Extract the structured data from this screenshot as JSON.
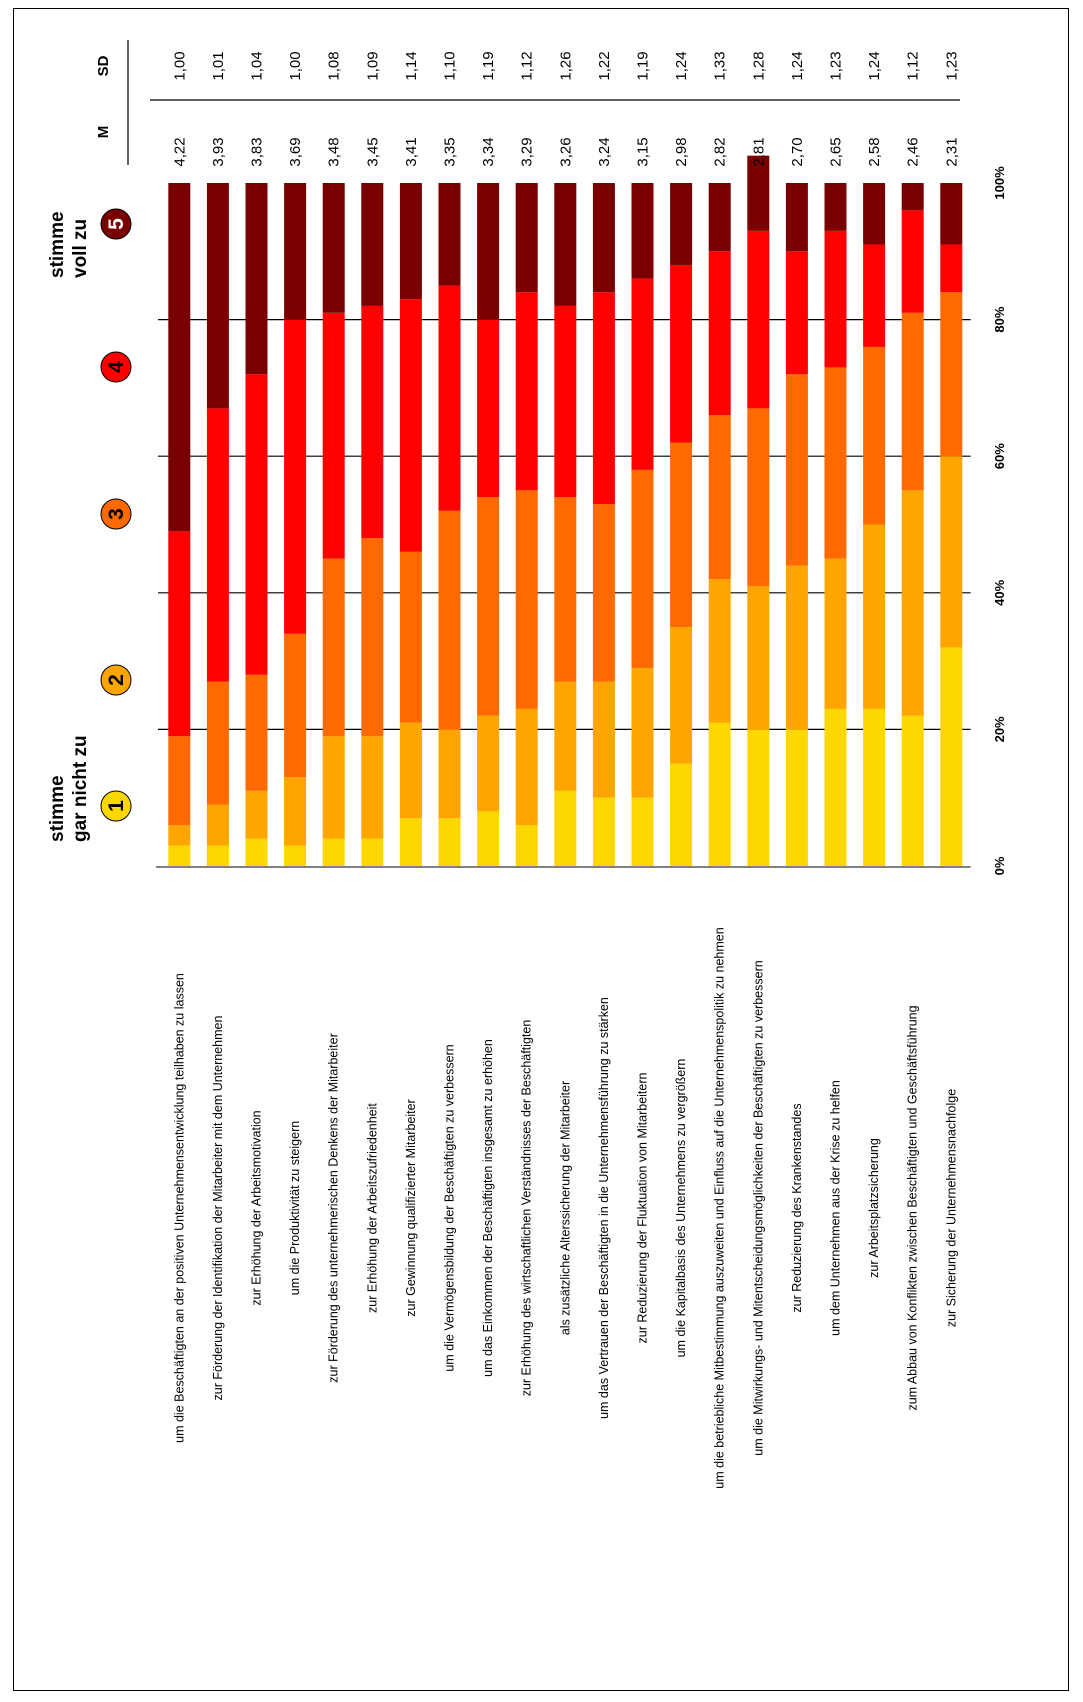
{
  "chart_data": {
    "type": "bar",
    "orientation": "horizontal-stacked-100",
    "categories": [
      "um die Beschäftigten an der positiven Unternehmensentwicklung teilhaben zu lassen",
      "zur Förderung der Identifikation der Mitarbeiter mit dem Unternehmen",
      "zur Erhöhung der Arbeitsmotivation",
      "um die Produktivität zu steigern",
      "zur Förderung des unternehmerischen Denkens der Mitarbeiter",
      "zur Erhöhung der Arbeitszufriedenheit",
      "zur Gewinnung qualifizierter Mitarbeiter",
      "um die Vermögensbildung der Beschäftigten zu verbessern",
      "um das Einkommen der Beschäftigten insgesamt zu erhöhen",
      "zur Erhöhung des wirtschaftlichen Verständnisses der Beschäftigten",
      "als zusätzliche Alterssicherung der Mitarbeiter",
      "um das Vertrauen der Beschäftigten in die Unternehmensführung zu stärken",
      "zur Reduzierung der Fluktuation von Mitarbeitern",
      "um die Kapitalbasis des Unternehmens zu vergrößern",
      "um die betriebliche Mitbestimmung auszuweiten und Einfluss auf die Unternehmenspolitik zu nehmen",
      "um die Mitwirkungs- und Mitentscheidungsmöglichkeiten der Beschäftigten zu verbessern",
      "zur Reduzierung des Krankenstandes",
      "um dem Unternehmen aus der Krise zu helfen",
      "zur Arbeitsplatzsicherung",
      "zum Abbau von Konflikten zwischen Beschäftigten und Geschäftsführung",
      "zur Sicherung der Unternehmensnachfolge"
    ],
    "series": [
      {
        "key": "1",
        "color": "#FFD700",
        "values": [
          3,
          3,
          4,
          3,
          4,
          4,
          7,
          7,
          8,
          6,
          11,
          10,
          10,
          15,
          21,
          20,
          20,
          23,
          23,
          22,
          32
        ]
      },
      {
        "key": "2",
        "color": "#FFA500",
        "values": [
          3,
          6,
          7,
          10,
          15,
          15,
          14,
          13,
          14,
          17,
          16,
          17,
          19,
          20,
          21,
          21,
          24,
          22,
          27,
          33,
          28
        ]
      },
      {
        "key": "3",
        "color": "#FF6A00",
        "values": [
          13,
          18,
          17,
          21,
          26,
          29,
          25,
          32,
          32,
          32,
          27,
          26,
          29,
          27,
          24,
          26,
          28,
          28,
          26,
          26,
          24
        ]
      },
      {
        "key": "4",
        "color": "#FF0000",
        "values": [
          30,
          40,
          44,
          46,
          36,
          34,
          37,
          33,
          26,
          29,
          28,
          31,
          28,
          26,
          24,
          26,
          18,
          20,
          15,
          15,
          7
        ]
      },
      {
        "key": "5",
        "color": "#7A0000",
        "values": [
          51,
          33,
          28,
          20,
          19,
          18,
          17,
          15,
          20,
          16,
          18,
          16,
          14,
          12,
          10,
          11,
          10,
          7,
          9,
          4,
          9
        ]
      }
    ],
    "M": [
      "4,22",
      "3,93",
      "3,83",
      "3,69",
      "3,48",
      "3,45",
      "3,41",
      "3,35",
      "3,34",
      "3,29",
      "3,26",
      "3,24",
      "3,15",
      "2,98",
      "2,82",
      "2,81",
      "2,70",
      "2,65",
      "2,58",
      "2,46",
      "2,31"
    ],
    "SD": [
      "1,00",
      "1,01",
      "1,04",
      "1,00",
      "1,08",
      "1,09",
      "1,14",
      "1,10",
      "1,19",
      "1,12",
      "1,26",
      "1,22",
      "1,19",
      "1,24",
      "1,33",
      "1,28",
      "1,24",
      "1,23",
      "1,24",
      "1,12",
      "1,23"
    ],
    "ticks": [
      "0%",
      "20%",
      "40%",
      "60%",
      "80%",
      "100%"
    ],
    "xlim": [
      0,
      100
    ],
    "grid": true,
    "stat_headers": {
      "m": "M",
      "sd": "SD"
    },
    "legend": {
      "low_label_line1": "stimme",
      "low_label_line2": "gar nicht zu",
      "high_label_line1": "stimme",
      "high_label_line2": "voll zu",
      "items": [
        {
          "num": "1",
          "color": "#FFD700",
          "text_color": "#000000"
        },
        {
          "num": "2",
          "color": "#FFA500",
          "text_color": "#000000"
        },
        {
          "num": "3",
          "color": "#FF6A00",
          "text_color": "#000000"
        },
        {
          "num": "4",
          "color": "#FF0000",
          "text_color": "#000000"
        },
        {
          "num": "5",
          "color": "#7A0000",
          "text_color": "#ffffff"
        }
      ]
    }
  }
}
